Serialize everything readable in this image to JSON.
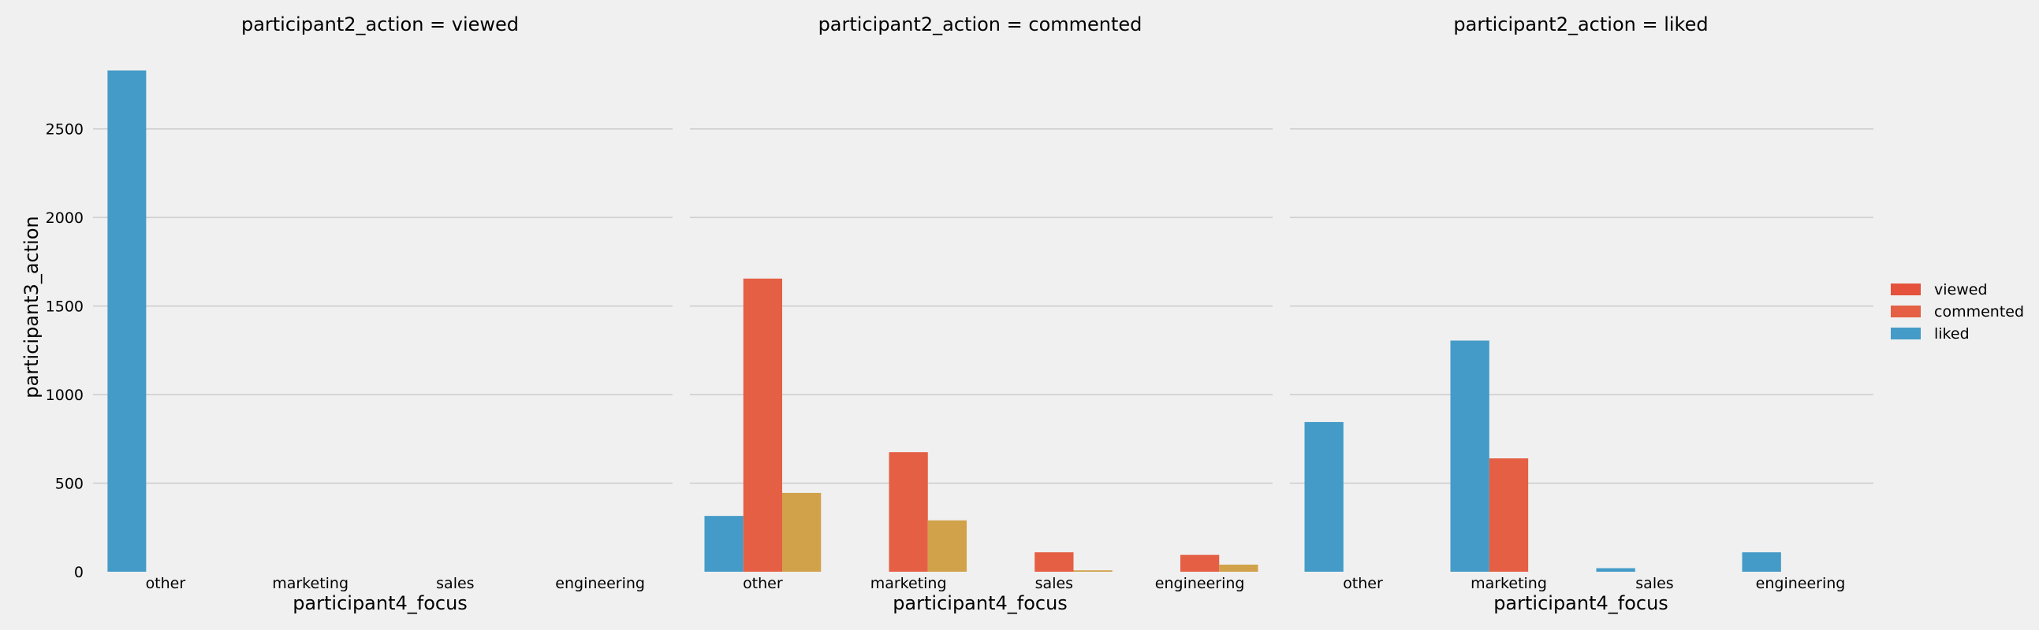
{
  "chart_data": {
    "type": "bar",
    "xlabel": "participant4_focus",
    "ylabel": "participant3_action",
    "categories": [
      "other",
      "marketing",
      "sales",
      "engineering"
    ],
    "yticks": [
      0,
      500,
      1000,
      1500,
      2000,
      2500
    ],
    "ylim": [
      0,
      2970
    ],
    "grid": true,
    "legend": {
      "placement": "right",
      "entries": [
        {
          "label": "viewed",
          "color": "#e5513b"
        },
        {
          "label": "commented",
          "color": "#e45f43"
        },
        {
          "label": "liked",
          "color": "#449bc8"
        }
      ]
    },
    "series_colors": {
      "liked": "#449bc8",
      "commented": "#e45f43",
      "viewed": "#d1a24a"
    },
    "series_order": [
      "liked",
      "commented",
      "viewed"
    ],
    "panels": [
      {
        "title": "participant2_action = viewed",
        "series": [
          {
            "name": "liked",
            "values": [
              2830,
              0,
              0,
              0
            ]
          },
          {
            "name": "commented",
            "values": [
              0,
              0,
              0,
              0
            ]
          },
          {
            "name": "viewed",
            "values": [
              0,
              0,
              0,
              0
            ]
          }
        ]
      },
      {
        "title": "participant2_action = commented",
        "series": [
          {
            "name": "liked",
            "values": [
              315,
              0,
              0,
              0
            ]
          },
          {
            "name": "commented",
            "values": [
              1655,
              675,
              110,
              95
            ]
          },
          {
            "name": "viewed",
            "values": [
              445,
              290,
              8,
              40
            ]
          }
        ]
      },
      {
        "title": "participant2_action = liked",
        "series": [
          {
            "name": "liked",
            "values": [
              845,
              1305,
              20,
              110
            ]
          },
          {
            "name": "commented",
            "values": [
              0,
              640,
              0,
              0
            ]
          },
          {
            "name": "viewed",
            "values": [
              0,
              0,
              0,
              0
            ]
          }
        ]
      }
    ]
  }
}
